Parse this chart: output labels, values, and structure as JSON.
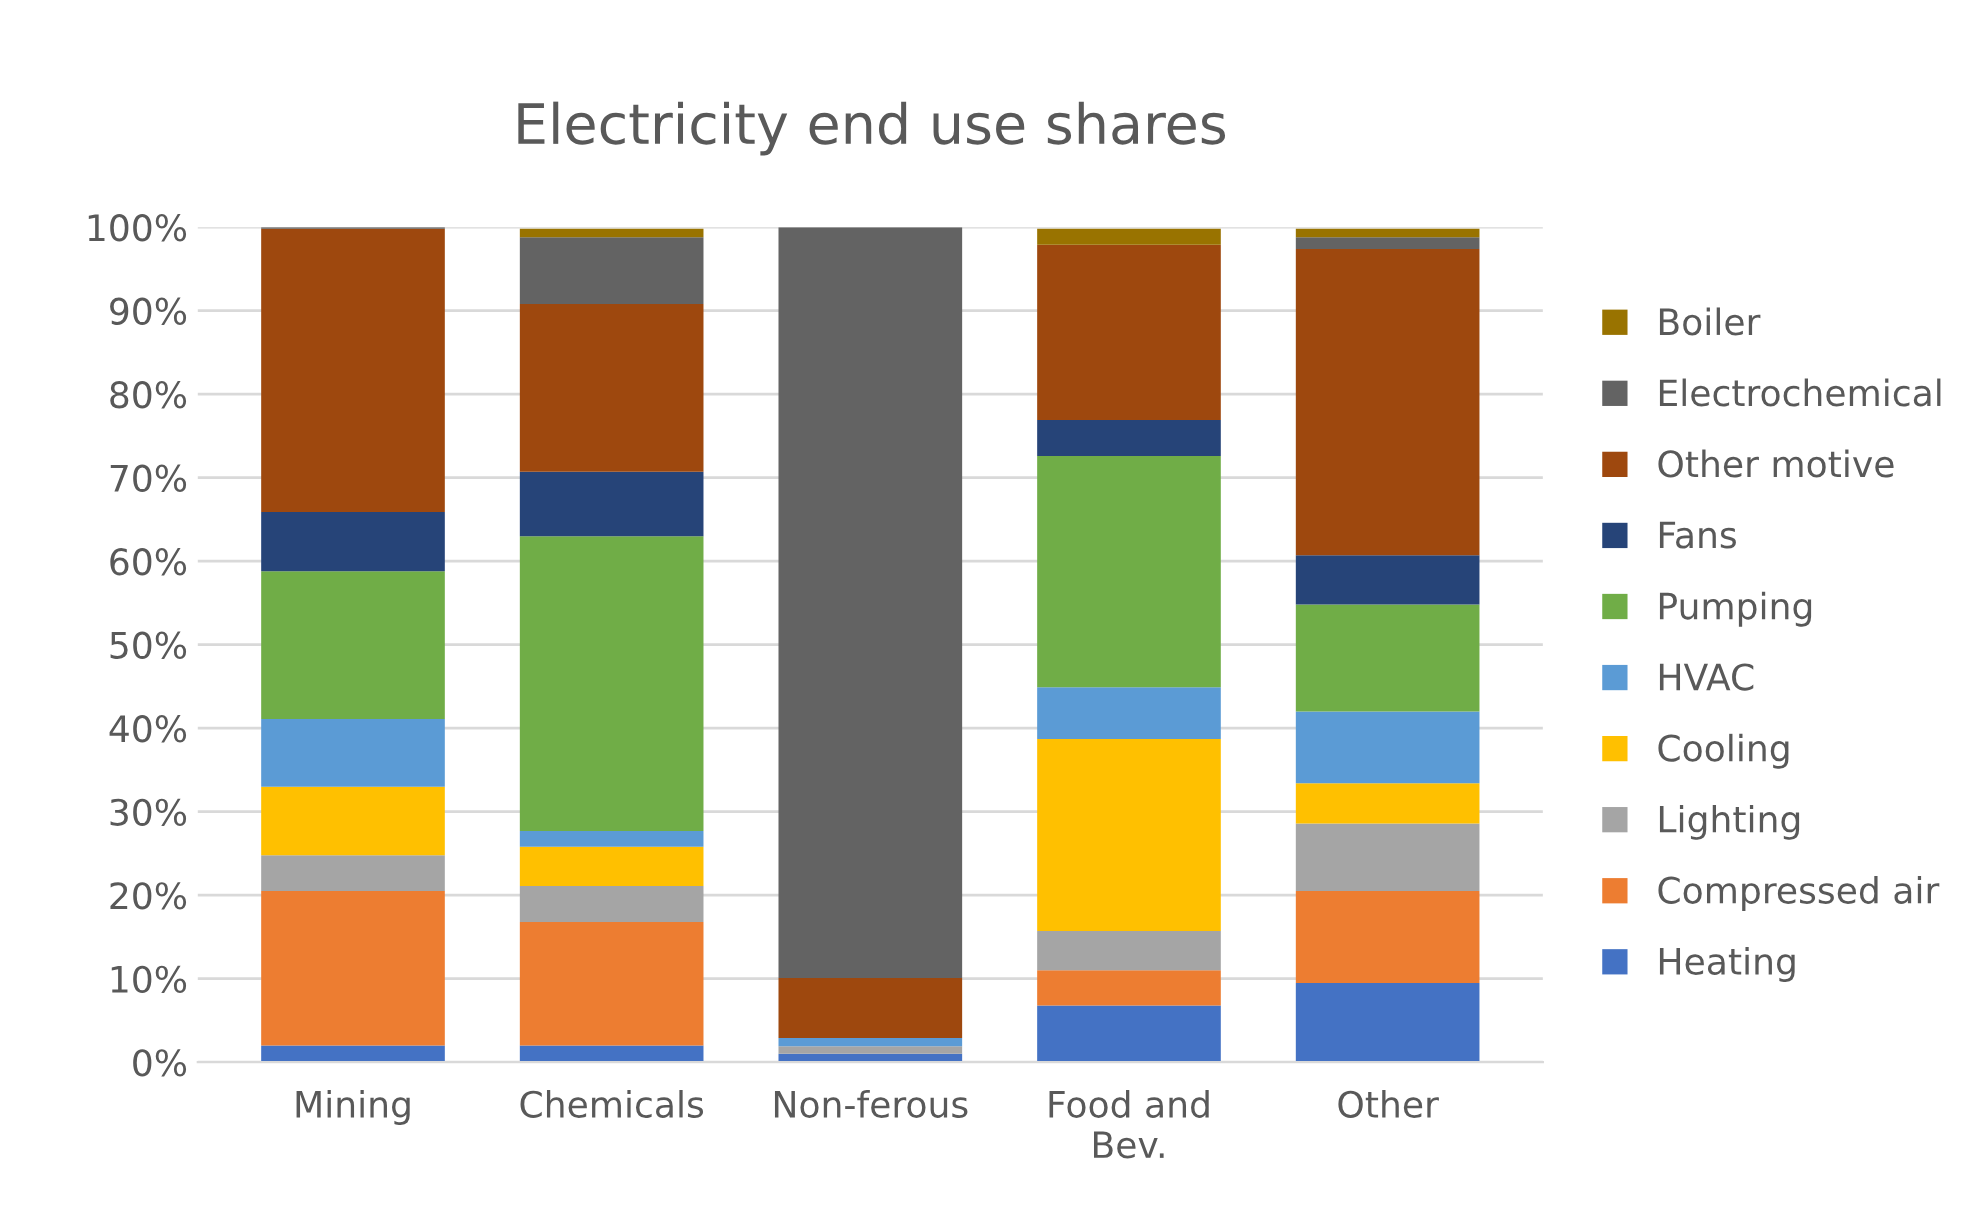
{
  "chart_data": {
    "type": "bar",
    "title": "Electricity end use shares",
    "stacked": true,
    "categories": [
      "Mining",
      "Chemicals",
      "Non-ferous",
      "Food and\nBev.",
      "Other"
    ],
    "ylim": [
      0,
      100
    ],
    "yticks": [
      {
        "value": 0,
        "label": "0%"
      },
      {
        "value": 10,
        "label": "10%"
      },
      {
        "value": 20,
        "label": "20%"
      },
      {
        "value": 30,
        "label": "30%"
      },
      {
        "value": 40,
        "label": "40%"
      },
      {
        "value": 50,
        "label": "50%"
      },
      {
        "value": 60,
        "label": "60%"
      },
      {
        "value": 70,
        "label": "70%"
      },
      {
        "value": 80,
        "label": "80%"
      },
      {
        "value": 90,
        "label": "90%"
      },
      {
        "value": 100,
        "label": "100%"
      }
    ],
    "grid": "y",
    "legend": "right",
    "series": [
      {
        "name": "Heating",
        "color": "#4472c4",
        "values": [
          2.0,
          2.0,
          1.0,
          6.8,
          9.5
        ]
      },
      {
        "name": "Compressed air",
        "color": "#ed7d31",
        "values": [
          18.5,
          14.8,
          0,
          4.2,
          11.0
        ]
      },
      {
        "name": "Lighting",
        "color": "#a5a5a5",
        "values": [
          4.3,
          4.3,
          0.9,
          4.7,
          8.1
        ]
      },
      {
        "name": "Cooling",
        "color": "#ffc000",
        "values": [
          8.2,
          4.7,
          0,
          23.0,
          4.8
        ]
      },
      {
        "name": "HVAC",
        "color": "#5b9bd5",
        "values": [
          8.1,
          1.9,
          1.0,
          6.2,
          8.6
        ]
      },
      {
        "name": "Pumping",
        "color": "#70ad47",
        "values": [
          17.7,
          35.3,
          0,
          27.7,
          12.8
        ]
      },
      {
        "name": "Fans",
        "color": "#264478",
        "values": [
          7.1,
          7.7,
          0,
          4.3,
          5.9
        ]
      },
      {
        "name": "Other motive",
        "color": "#9e480e",
        "values": [
          33.9,
          20.1,
          7.2,
          21.0,
          36.7
        ]
      },
      {
        "name": "Electrochemical",
        "color": "#636363",
        "values": [
          0.2,
          8.0,
          89.9,
          0,
          1.4
        ]
      },
      {
        "name": "Boiler",
        "color": "#997300",
        "values": [
          0,
          1.0,
          0,
          1.9,
          1.0
        ]
      }
    ]
  }
}
